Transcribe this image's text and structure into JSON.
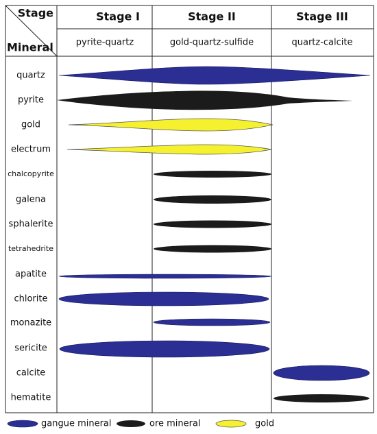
{
  "header": {
    "stage_label": "Stage",
    "mineral_label": "Mineral",
    "stages": [
      {
        "name": "Stage I",
        "assemblage": "pyrite-quartz"
      },
      {
        "name": "Stage II",
        "assemblage": "gold-quartz-sulfide"
      },
      {
        "name": "Stage III",
        "assemblage": "quartz-calcite"
      }
    ]
  },
  "minerals": [
    "quartz",
    "pyrite",
    "gold",
    "electrum",
    "chalcopyrite",
    "galena",
    "sphalerite",
    "tetrahedrite",
    "apatite",
    "chlorite",
    "monazite",
    "sericite",
    "calcite",
    "hematite"
  ],
  "legend": [
    "gangue mineral",
    "ore mineral",
    "gold"
  ]
}
